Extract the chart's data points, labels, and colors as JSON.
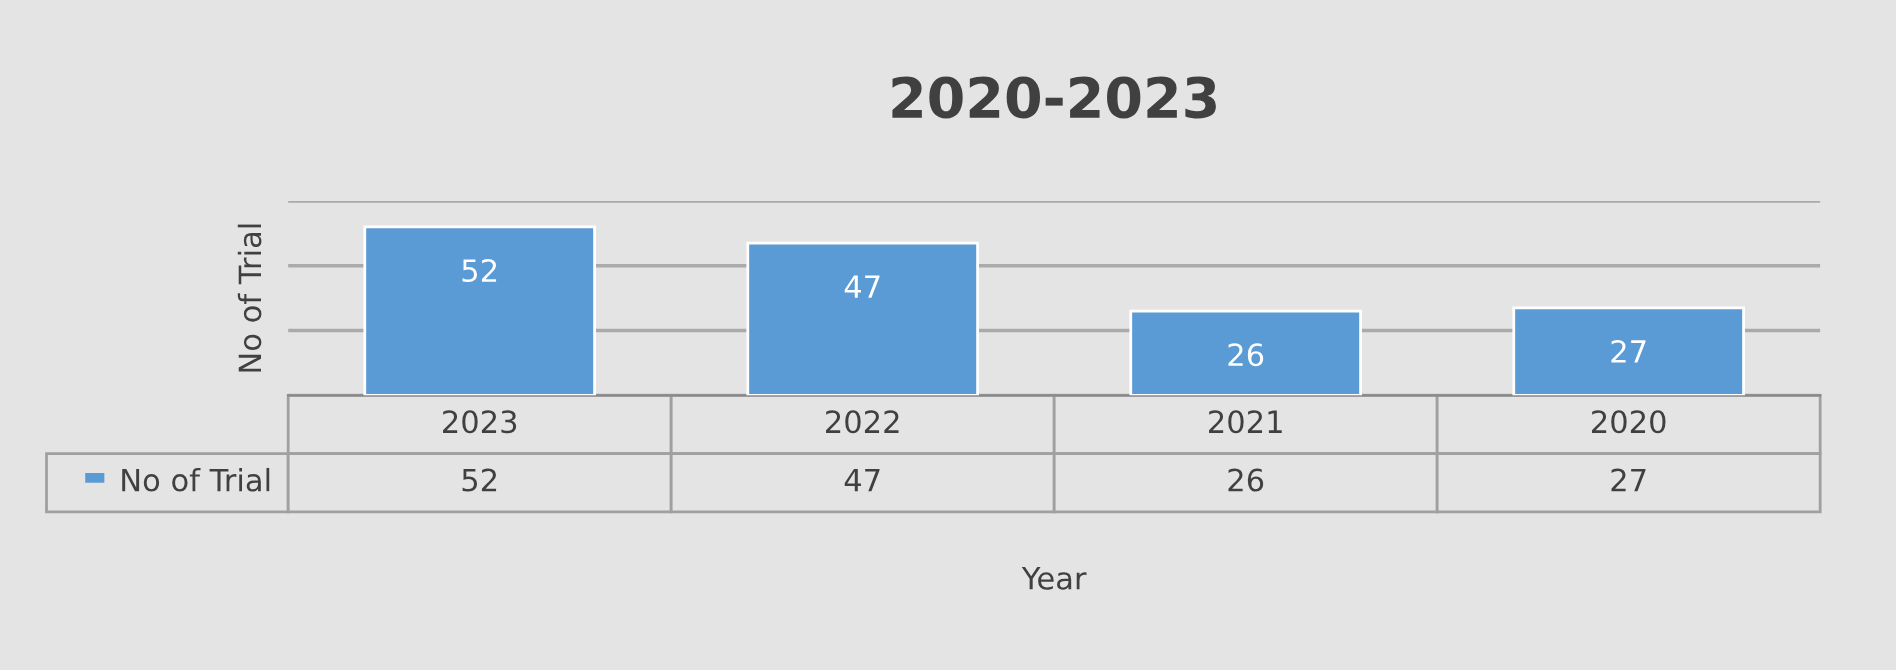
{
  "chart_data": {
    "type": "bar",
    "title": "2020-2023",
    "ylabel": "No of Trial",
    "xlabel": "Year",
    "categories": [
      "2023",
      "2022",
      "2021",
      "2020"
    ],
    "series": [
      {
        "name": "No of Trial",
        "color": "#5b9bd5",
        "values": [
          52,
          47,
          26,
          27
        ],
        "value_labels": [
          "52",
          "47",
          "26",
          "27"
        ]
      }
    ],
    "ylim": [
      0,
      60
    ],
    "yticks": [
      {
        "value": 0,
        "label": null
      },
      {
        "value": 20,
        "label": null
      },
      {
        "value": 40,
        "label": null
      },
      {
        "value": 60,
        "label": null
      }
    ],
    "annotations": [
      "52",
      "47",
      "26",
      "27"
    ],
    "grid": "y",
    "legend": "bottom left"
  }
}
